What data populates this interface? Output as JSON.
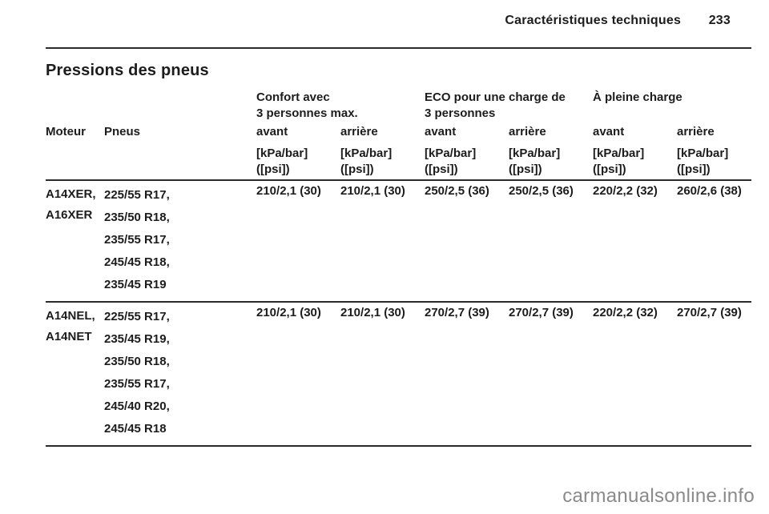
{
  "page": {
    "header_title": "Caractéristiques techniques",
    "page_number": "233",
    "section_title": "Pressions des pneus",
    "watermark": "carmanualsonline.info"
  },
  "table": {
    "group_headers": [
      {
        "line1": "Confort avec",
        "line2": "3 personnes max."
      },
      {
        "line1": "ECO pour une charge de",
        "line2": "3 personnes"
      },
      {
        "line1": "À pleine charge",
        "line2": ""
      }
    ],
    "cols": {
      "moteur": "Moteur",
      "pneus": "Pneus",
      "avant": "avant",
      "arriere": "arrière"
    },
    "units": {
      "line1": "[kPa/bar]",
      "line2": "([psi])"
    },
    "rows": [
      {
        "moteur": [
          "A14XER,",
          "A16XER"
        ],
        "pneus": [
          "225/55 R17,",
          "235/50 R18,",
          "235/55 R17,",
          "245/45 R18,",
          "235/45 R19"
        ],
        "values": [
          "210/2,1 (30)",
          "210/2,1 (30)",
          "250/2,5 (36)",
          "250/2,5 (36)",
          "220/2,2 (32)",
          "260/2,6 (38)"
        ]
      },
      {
        "moteur": [
          "A14NEL,",
          "A14NET"
        ],
        "pneus": [
          "225/55 R17,",
          "235/45 R19,",
          "235/50 R18,",
          "235/55 R17,",
          "245/40 R20,",
          "245/45 R18"
        ],
        "values": [
          "210/2,1 (30)",
          "210/2,1 (30)",
          "270/2,7 (39)",
          "270/2,7 (39)",
          "220/2,2 (32)",
          "270/2,7 (39)"
        ]
      }
    ]
  }
}
